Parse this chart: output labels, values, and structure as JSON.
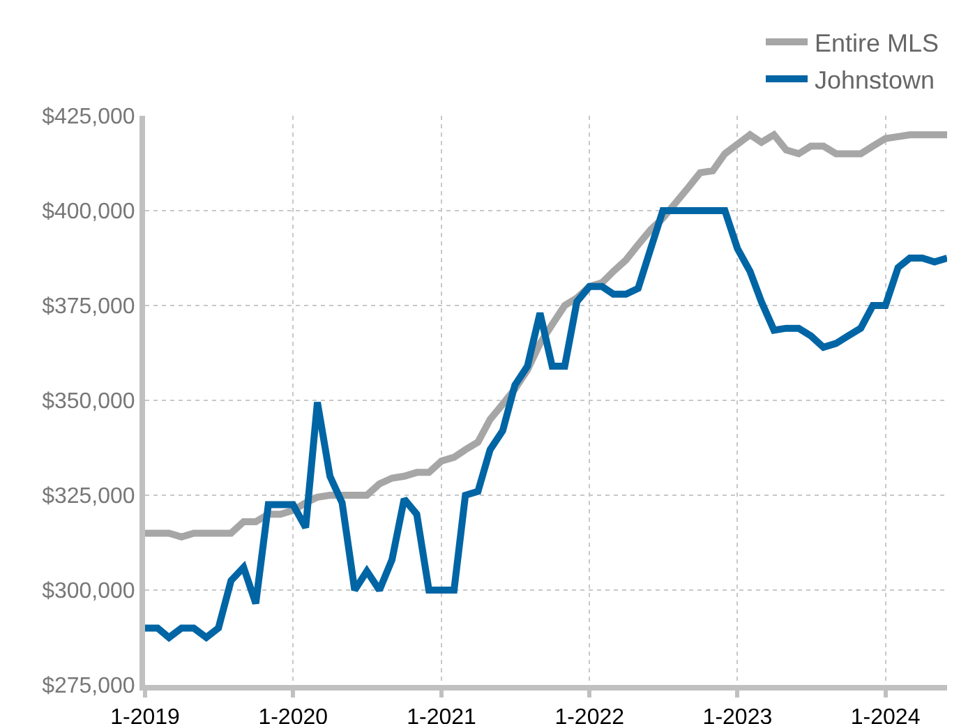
{
  "chart_data": {
    "type": "line",
    "x": [
      "2019-01",
      "2019-02",
      "2019-03",
      "2019-04",
      "2019-05",
      "2019-06",
      "2019-07",
      "2019-08",
      "2019-09",
      "2019-10",
      "2019-11",
      "2019-12",
      "2020-01",
      "2020-02",
      "2020-03",
      "2020-04",
      "2020-05",
      "2020-06",
      "2020-07",
      "2020-08",
      "2020-09",
      "2020-10",
      "2020-11",
      "2020-12",
      "2021-01",
      "2021-02",
      "2021-03",
      "2021-04",
      "2021-05",
      "2021-06",
      "2021-07",
      "2021-08",
      "2021-09",
      "2021-10",
      "2021-11",
      "2021-12",
      "2022-01",
      "2022-02",
      "2022-03",
      "2022-04",
      "2022-05",
      "2022-06",
      "2022-07",
      "2022-08",
      "2022-09",
      "2022-10",
      "2022-11",
      "2022-12",
      "2023-01",
      "2023-02",
      "2023-03",
      "2023-04",
      "2023-05",
      "2023-06",
      "2023-07",
      "2023-08",
      "2023-09",
      "2023-10",
      "2023-11",
      "2023-12",
      "2024-01",
      "2024-02",
      "2024-03",
      "2024-04",
      "2024-05",
      "2024-06"
    ],
    "series": [
      {
        "name": "Entire MLS",
        "color": "#a6a6a6",
        "values": [
          315000,
          315000,
          315000,
          314000,
          315000,
          315000,
          315000,
          315000,
          318000,
          318000,
          320000,
          320000,
          321000,
          323000,
          324500,
          325000,
          325000,
          325000,
          325000,
          328000,
          329500,
          330000,
          331000,
          331000,
          334000,
          335000,
          337000,
          339000,
          345000,
          349000,
          353000,
          358000,
          365000,
          370000,
          375000,
          377000,
          380000,
          381000,
          384000,
          387000,
          391000,
          395000,
          398000,
          402000,
          406000,
          410000,
          410500,
          415000,
          417500,
          420000,
          418000,
          420000,
          416000,
          415000,
          417000,
          417000,
          415000,
          415000,
          415000,
          417000,
          419000,
          419500,
          420000,
          420000,
          420000,
          420000
        ]
      },
      {
        "name": "Johnstown",
        "color": "#0065a4",
        "values": [
          290000,
          290000,
          287500,
          290000,
          290000,
          287500,
          290000,
          302500,
          306000,
          296500,
          322500,
          322500,
          322500,
          316500,
          349500,
          330000,
          323000,
          300000,
          305000,
          300000,
          308000,
          324000,
          320000,
          300000,
          300000,
          300000,
          325000,
          326000,
          337000,
          342000,
          354000,
          359000,
          373000,
          359000,
          359000,
          376000,
          380000,
          380000,
          378000,
          378000,
          379500,
          390000,
          400000,
          400000,
          400000,
          400000,
          400000,
          400000,
          390000,
          384000,
          376000,
          368500,
          369000,
          369000,
          367000,
          364000,
          365000,
          367000,
          369000,
          375000,
          375000,
          385000,
          387500,
          387500,
          386500,
          387500
        ]
      }
    ],
    "xlim": [
      "2019-01",
      "2024-06"
    ],
    "xticks": [
      {
        "value": "2019-01",
        "label": "1-2019"
      },
      {
        "value": "2020-01",
        "label": "1-2020"
      },
      {
        "value": "2021-01",
        "label": "1-2021"
      },
      {
        "value": "2022-01",
        "label": "1-2022"
      },
      {
        "value": "2023-01",
        "label": "1-2023"
      },
      {
        "value": "2024-01",
        "label": "1-2024"
      }
    ],
    "ylim": [
      275000,
      425000
    ],
    "yticks": [
      {
        "value": 275000,
        "label": "$275,000"
      },
      {
        "value": 300000,
        "label": "$300,000"
      },
      {
        "value": 325000,
        "label": "$325,000"
      },
      {
        "value": 350000,
        "label": "$350,000"
      },
      {
        "value": 375000,
        "label": "$375,000"
      },
      {
        "value": 400000,
        "label": "$400,000"
      },
      {
        "value": 425000,
        "label": "$425,000"
      }
    ],
    "grid": true,
    "legend": "top right",
    "marker": "none",
    "line_style": "solid"
  }
}
